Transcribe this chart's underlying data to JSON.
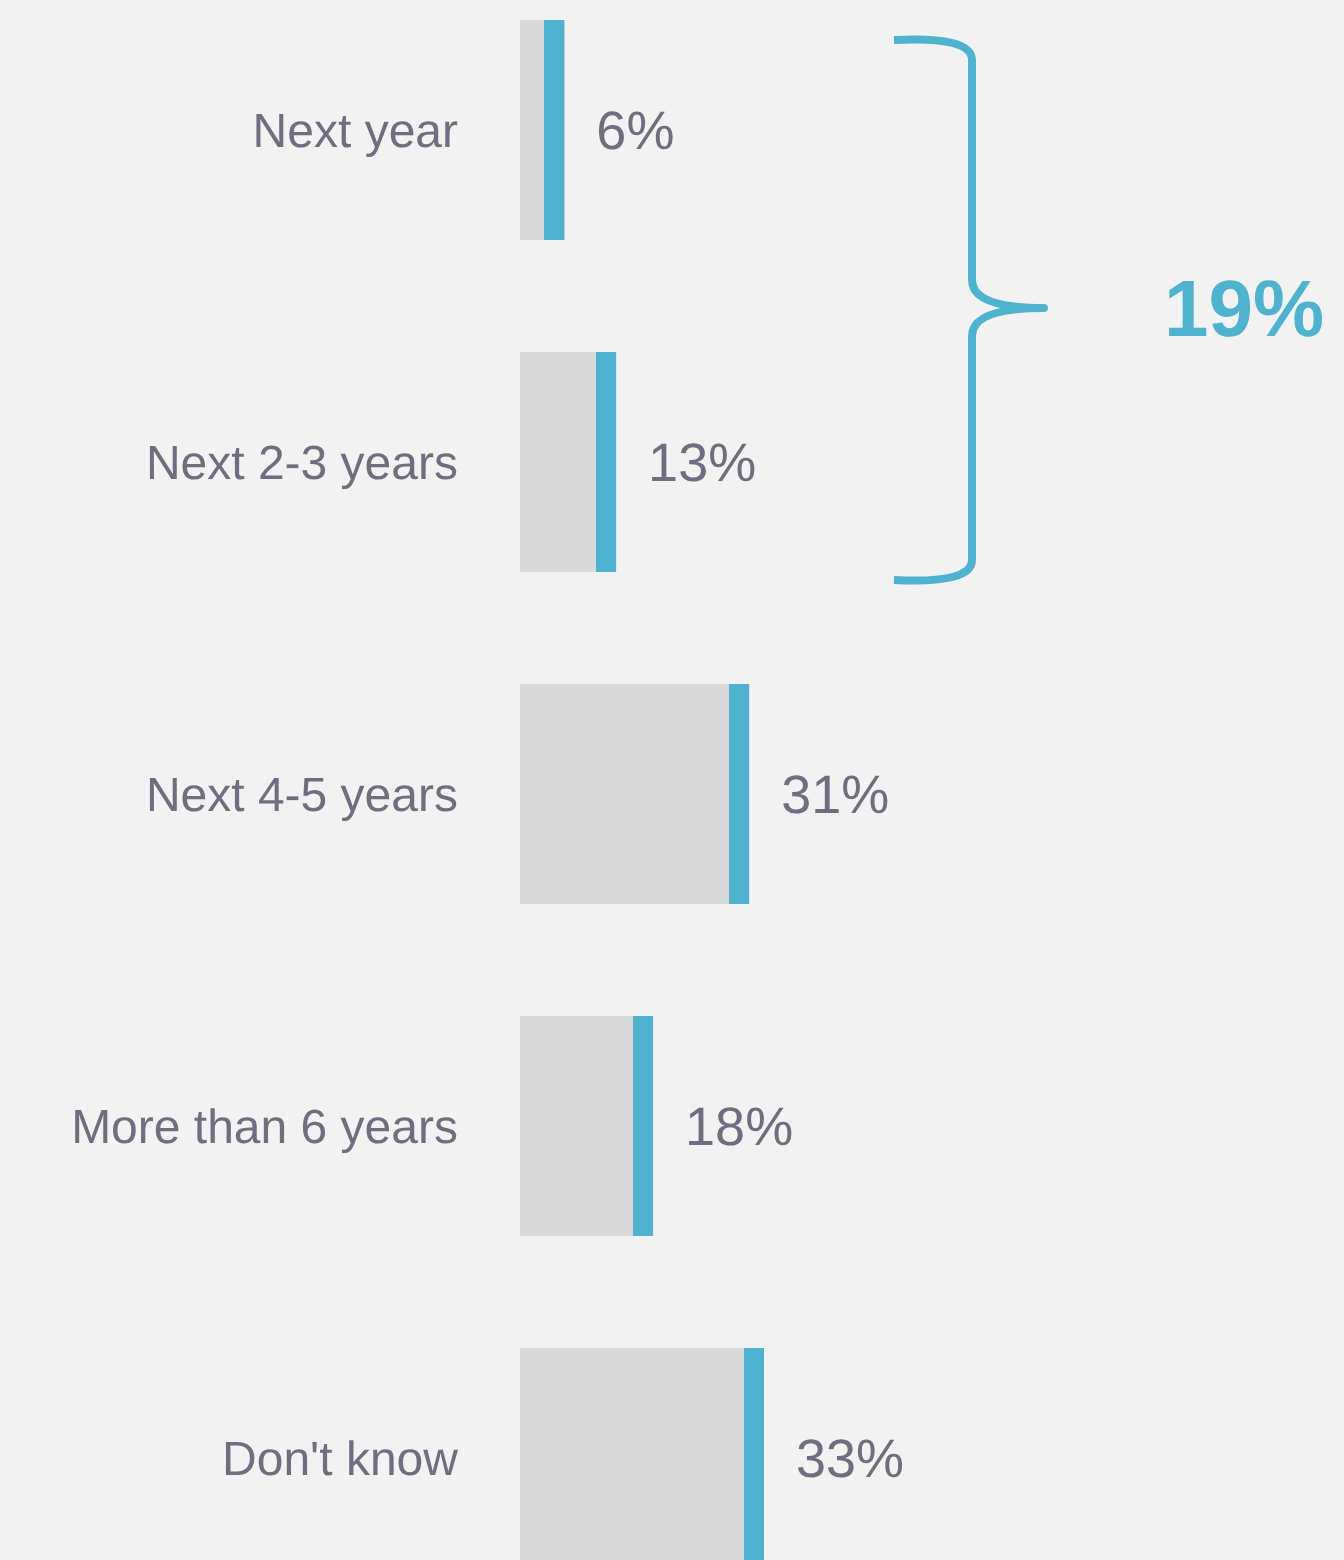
{
  "chart_data": {
    "type": "bar",
    "orientation": "horizontal",
    "categories": [
      "Next year",
      "Next 2-3 years",
      "Next 4-5 years",
      "More than 6 years",
      "Don't know"
    ],
    "values": [
      6,
      13,
      31,
      18,
      33
    ],
    "color": "#d9d9d9",
    "data_labels": true,
    "value_labels": [
      "6%",
      "13%",
      "31%",
      "18%",
      "33%"
    ],
    "tick_labels": "y",
    "annotations": [
      "19%"
    ]
  }
}
